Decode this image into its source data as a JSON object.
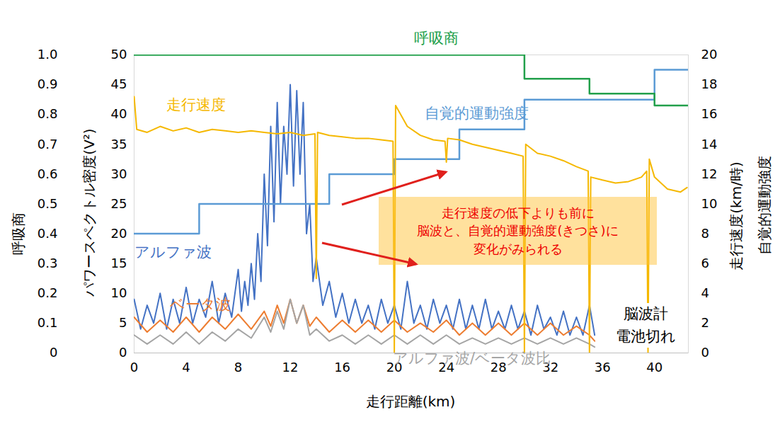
{
  "chart_data": {
    "type": "line",
    "x_label": "走行距離(km)",
    "y_label": "パワースペクトル密度(V²)",
    "y2_labels": [
      "走行速度(km/時)",
      "自覚的運動強度"
    ],
    "y3_label": "呼吸商",
    "xlim": [
      0,
      42.6
    ],
    "xticks": [
      0,
      4,
      8,
      12,
      16,
      20,
      24,
      28,
      32,
      36,
      40
    ],
    "ylim": [
      0,
      50
    ],
    "yticks": [
      0,
      5,
      10,
      15,
      20,
      25,
      30,
      35,
      40,
      45,
      50
    ],
    "y2lim": [
      0,
      20
    ],
    "y2ticks": [
      0,
      2,
      4,
      6,
      8,
      10,
      12,
      14,
      16,
      18,
      20
    ],
    "y3lim": [
      0,
      1
    ],
    "y3ticks": [
      0,
      0.1,
      0.2,
      0.3,
      0.4,
      0.5,
      0.6,
      0.7,
      0.8,
      0.9,
      {
        "value": 1,
        "label": "1.0"
      }
    ],
    "grid": false,
    "annotation": [
      "走行速度の低下よりも前に",
      "脳波と、自覚的運動強度(きつさ)に",
      "変化がみられる"
    ],
    "note": [
      "脳波計",
      "電池切れ"
    ],
    "series": [
      {
        "name": "アルファ波",
        "color": "#4472c4",
        "axis": "y",
        "line_style": "solid",
        "x": [
          0,
          0.5,
          1,
          1.5,
          2,
          2.5,
          3,
          3.5,
          4,
          4.5,
          5,
          5.5,
          6,
          6.5,
          7,
          7.5,
          8,
          8.25,
          8.5,
          8.75,
          9,
          9.25,
          9.5,
          9.75,
          10,
          10.25,
          10.5,
          10.75,
          11,
          11.25,
          11.5,
          11.75,
          12,
          12.25,
          12.5,
          12.75,
          13,
          13.25,
          13.5,
          13.75,
          14,
          14.5,
          15,
          15.5,
          16,
          16.5,
          17,
          17.5,
          18,
          18.5,
          19,
          19.5,
          20,
          20.5,
          21,
          21.5,
          22,
          22.5,
          23,
          23.5,
          24,
          24.5,
          25,
          25.5,
          26,
          26.5,
          27,
          27.5,
          28,
          28.5,
          29,
          29.5,
          30,
          30.5,
          31,
          31.5,
          32,
          32.5,
          33,
          33.5,
          34,
          34.5,
          35,
          35.4
        ],
        "values": [
          9,
          4,
          8,
          5,
          10,
          4,
          9,
          5,
          11,
          5,
          9,
          6,
          12,
          5,
          10,
          6,
          14,
          7,
          12,
          8,
          15,
          9,
          20,
          12,
          30,
          18,
          38,
          22,
          42,
          25,
          38,
          30,
          45,
          28,
          44,
          30,
          42,
          20,
          25,
          12,
          16,
          8,
          12,
          6,
          10,
          5,
          9,
          5,
          8,
          4,
          9,
          5,
          8,
          4,
          12,
          5,
          8,
          4,
          9,
          5,
          8,
          4,
          9,
          4,
          8,
          4,
          9,
          4,
          7,
          4,
          8,
          4,
          7,
          3,
          8,
          4,
          6,
          3,
          7,
          3,
          6,
          3,
          8,
          3
        ]
      },
      {
        "name": "ベータ波",
        "color": "#ed7d31",
        "axis": "y",
        "line_style": "solid",
        "x": [
          0,
          1,
          2,
          3,
          4,
          5,
          6,
          7,
          8,
          9,
          10,
          10.5,
          11,
          11.5,
          12,
          12.5,
          13,
          13.5,
          14,
          15,
          16,
          17,
          18,
          19,
          20,
          21,
          22,
          23,
          24,
          25,
          26,
          27,
          28,
          29,
          30,
          31,
          32,
          33,
          34,
          35,
          35.4
        ],
        "values": [
          6,
          3.5,
          5.5,
          3.5,
          6,
          3.5,
          6,
          4,
          6.5,
          4,
          7,
          4.5,
          8,
          5,
          9,
          5,
          8,
          4.5,
          6,
          3.5,
          5.5,
          3.5,
          5.5,
          3.5,
          5.5,
          3.5,
          5,
          3.5,
          5.5,
          3,
          5,
          3,
          5,
          3,
          5,
          3,
          5,
          3,
          4.5,
          3,
          2
        ]
      },
      {
        "name": "アルファ波/ベータ波比",
        "color": "#a5a5a5",
        "axis": "y",
        "line_style": "solid",
        "x": [
          0,
          1,
          2,
          3,
          4,
          5,
          6,
          7,
          8,
          9,
          10,
          10.5,
          11,
          11.5,
          12,
          12.5,
          13,
          13.5,
          14,
          15,
          16,
          17,
          18,
          19,
          20,
          21,
          22,
          23,
          24,
          25,
          26,
          27,
          28,
          29,
          30,
          31,
          32,
          33,
          34,
          35,
          35.4
        ],
        "values": [
          3,
          1.5,
          3,
          1.5,
          3.5,
          1.5,
          3.5,
          2,
          4,
          2.5,
          6,
          3.5,
          7,
          4,
          9,
          5,
          8,
          3,
          4,
          2,
          3,
          1.5,
          3,
          1.5,
          3,
          1.5,
          3,
          1.5,
          3,
          1.5,
          2.5,
          1.5,
          2.5,
          1.5,
          2.5,
          1.5,
          2.5,
          1.5,
          2.5,
          1.5,
          1
        ]
      },
      {
        "name": "自覚的運動強度",
        "color": "#5b9bd5",
        "axis": "y2",
        "line_style": "step",
        "x": [
          0,
          5,
          15,
          20,
          25,
          30,
          40,
          42.6
        ],
        "values": [
          8,
          10,
          12,
          13,
          15,
          17,
          19,
          19
        ]
      },
      {
        "name": "走行速度",
        "color": "#f5b800",
        "axis": "y2",
        "line_style": "solid",
        "x": [
          0,
          0.2,
          1,
          2,
          3,
          4,
          5,
          6,
          7,
          8,
          9,
          10,
          11,
          12,
          13,
          13.9,
          14,
          14.1,
          15,
          16,
          17,
          18,
          19,
          19.9,
          20,
          20.1,
          21,
          22,
          23,
          23.9,
          24,
          24.1,
          25,
          26,
          27,
          28,
          29,
          29.9,
          30,
          30.1,
          31,
          32,
          33,
          34,
          34.9,
          35,
          35.1,
          36,
          37,
          38,
          39,
          39.4,
          39.5,
          39.6,
          40,
          41,
          42,
          42.5
        ],
        "values": [
          17.2,
          15,
          14.8,
          15.2,
          14.9,
          15.1,
          14.8,
          15,
          14.9,
          14.8,
          14.9,
          14.8,
          14.7,
          14.8,
          14.6,
          14.7,
          5,
          14.8,
          14.6,
          14.5,
          14.4,
          14.4,
          14.3,
          14.2,
          0,
          16.6,
          15.2,
          14.6,
          14.3,
          14.2,
          12.8,
          14.4,
          14.3,
          14,
          13.8,
          13.6,
          13.4,
          13.2,
          0,
          14,
          13.4,
          13.2,
          12.9,
          12.5,
          12.2,
          0,
          11.8,
          11.6,
          11.4,
          11.5,
          11.8,
          12.2,
          0,
          13,
          11.8,
          11,
          10.8,
          11.1
        ]
      },
      {
        "name": "呼吸商",
        "color": "#22a04b",
        "axis": "y3",
        "line_style": "step",
        "x": [
          0,
          30,
          35,
          40,
          42.6
        ],
        "values": [
          1,
          0.92,
          0.87,
          0.83,
          0.83
        ]
      }
    ]
  }
}
